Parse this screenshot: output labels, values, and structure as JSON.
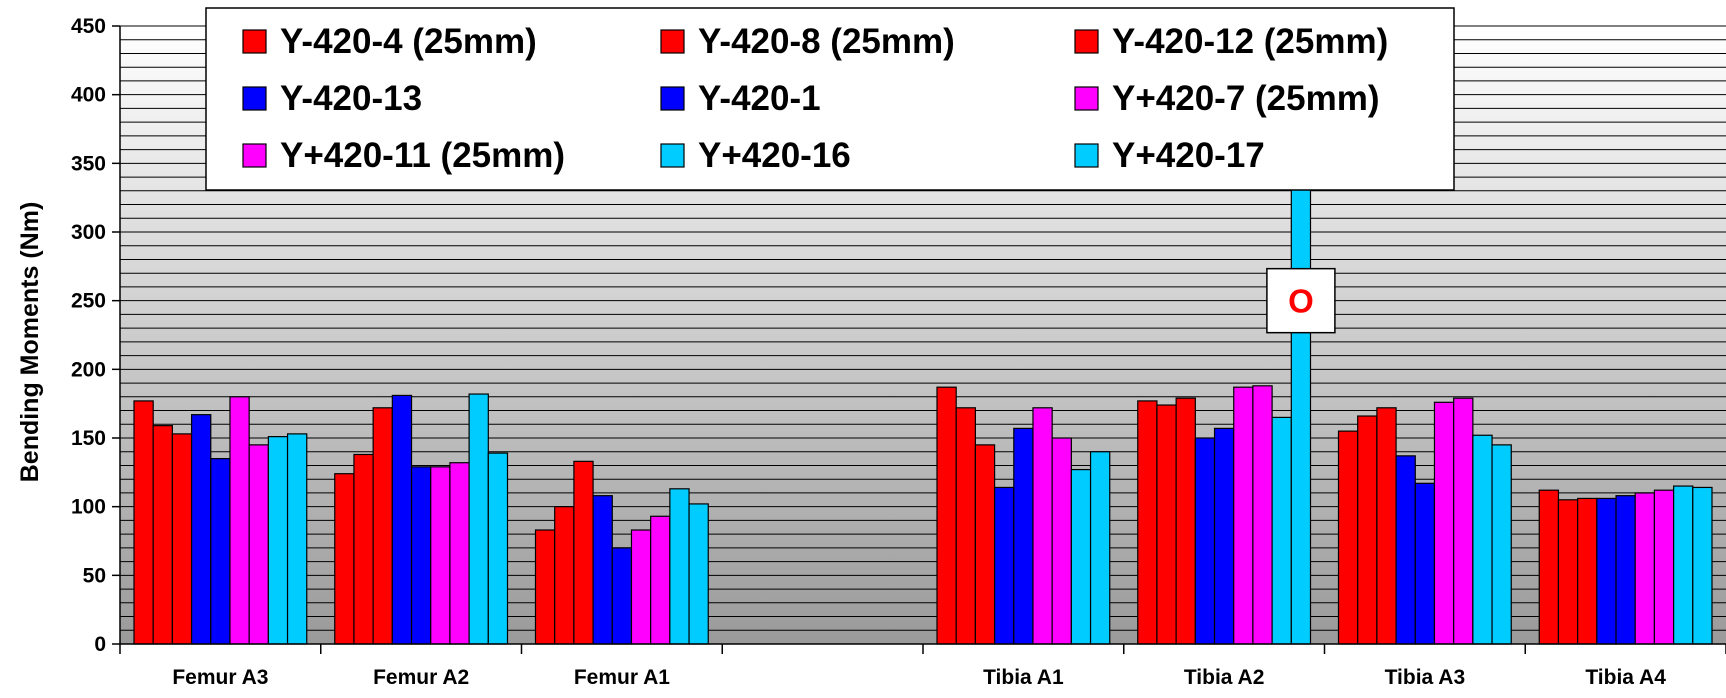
{
  "chart_data": {
    "type": "bar",
    "title": "",
    "xlabel": "",
    "ylabel": "Bending Moments (Nm)",
    "ylim": [
      0,
      450
    ],
    "yticks": [
      0,
      50,
      100,
      150,
      200,
      250,
      300,
      350,
      400,
      450
    ],
    "minor_grid_step": 10,
    "grid": true,
    "legend_position": "top",
    "categories": [
      "Femur A3",
      "Femur A2",
      "Femur A1",
      "",
      "Tibia A1",
      "Tibia A2",
      "Tibia A3",
      "Tibia A4"
    ],
    "series": [
      {
        "name": "Y-420-4 (25mm)",
        "color": "#ff0000",
        "values": [
          177,
          124,
          83,
          null,
          187,
          177,
          155,
          112
        ]
      },
      {
        "name": "Y-420-8 (25mm)",
        "color": "#ff0000",
        "values": [
          159,
          138,
          100,
          null,
          172,
          174,
          166,
          105
        ]
      },
      {
        "name": "Y-420-12 (25mm)",
        "color": "#ff0000",
        "values": [
          153,
          172,
          133,
          null,
          145,
          179,
          172,
          106
        ]
      },
      {
        "name": "Y-420-13",
        "color": "#0000ff",
        "values": [
          167,
          181,
          108,
          null,
          114,
          150,
          137,
          106
        ]
      },
      {
        "name": "Y-420-1",
        "color": "#0000ff",
        "values": [
          135,
          129,
          70,
          null,
          157,
          157,
          117,
          108
        ]
      },
      {
        "name": "Y+420-7 (25mm)",
        "color": "#ff00ff",
        "values": [
          180,
          129,
          83,
          null,
          172,
          187,
          176,
          110
        ]
      },
      {
        "name": "Y+420-11 (25mm)",
        "color": "#ff00ff",
        "values": [
          145,
          132,
          93,
          null,
          150,
          188,
          179,
          112
        ]
      },
      {
        "name": "Y+420-16",
        "color": "#00ccff",
        "values": [
          151,
          182,
          113,
          null,
          127,
          165,
          152,
          115
        ]
      },
      {
        "name": "Y+420-17",
        "color": "#00ccff",
        "values": [
          153,
          139,
          102,
          null,
          140,
          450,
          145,
          114
        ]
      }
    ],
    "annotation": {
      "text": "O",
      "category": "Tibia A2",
      "series": "Y+420-17",
      "value": 250,
      "color": "#ff0000"
    }
  }
}
